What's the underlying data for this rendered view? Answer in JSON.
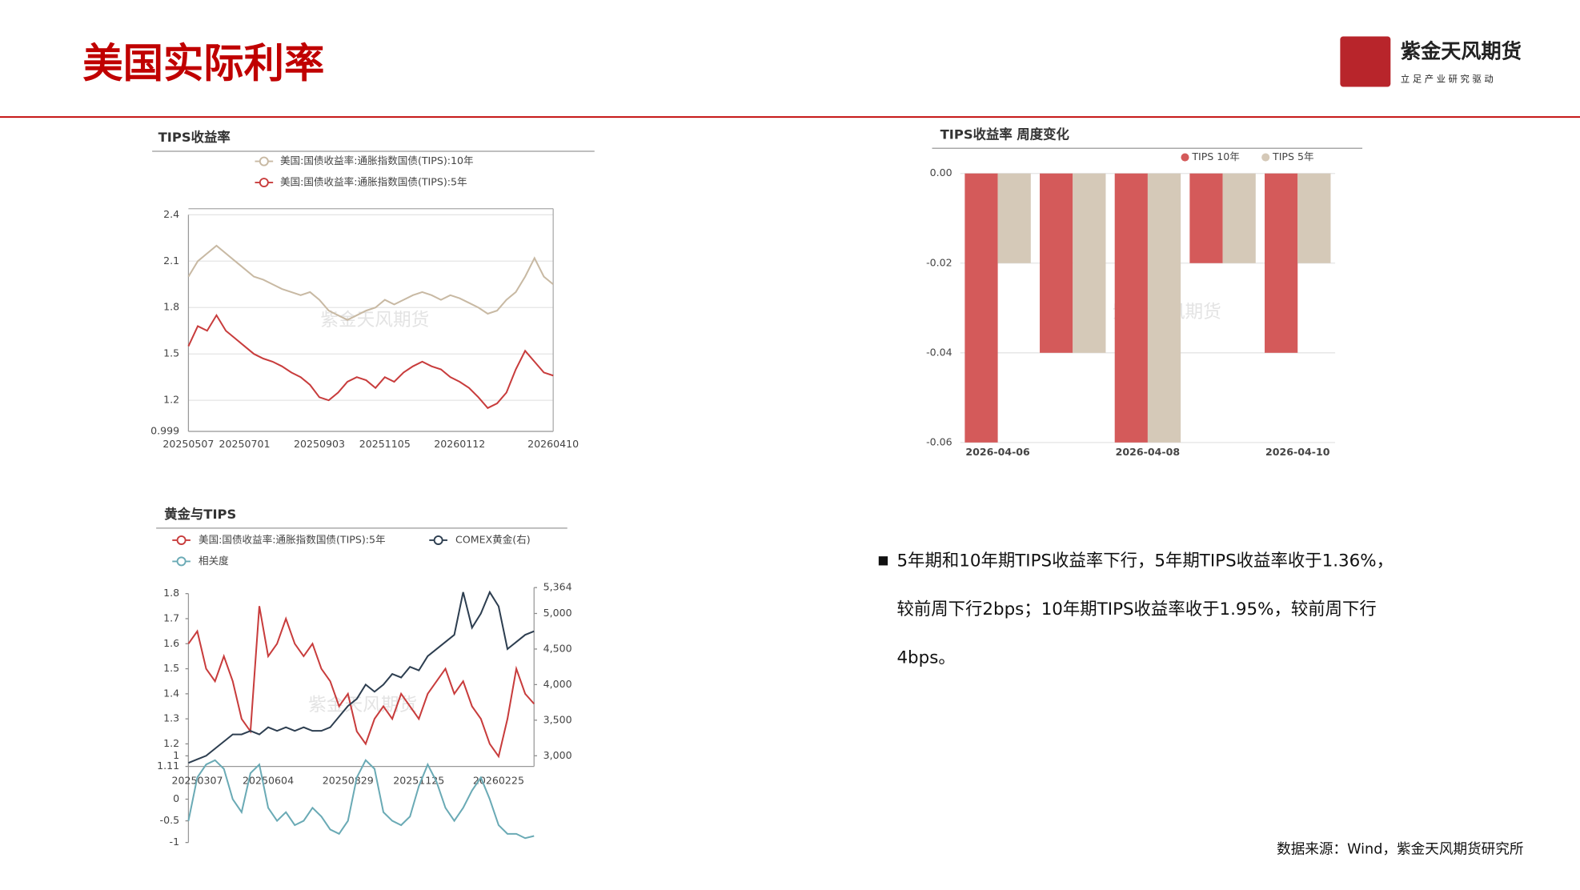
{
  "header": {
    "title": "美国实际利率",
    "logo": "紫金天风期货",
    "tagline": "立 足 产 业  研 究 驱 动",
    "watermark": "紫金天风期货"
  },
  "chart_data": [
    {
      "type": "line",
      "title": "TIPS收益率",
      "categories": [
        "20250507",
        null,
        null,
        null,
        null,
        null,
        "20250701",
        null,
        null,
        null,
        null,
        null,
        null,
        null,
        "20250903",
        null,
        null,
        null,
        null,
        null,
        null,
        "20251105",
        null,
        null,
        null,
        null,
        null,
        null,
        null,
        "20260112",
        null,
        null,
        null,
        null,
        null,
        null,
        null,
        null,
        null,
        "20260410"
      ],
      "series": [
        {
          "name": "美国:国债收益率:通胀指数国债(TIPS):10年",
          "color": "#c8b9a3",
          "values": [
            2.0,
            2.1,
            2.15,
            2.2,
            2.15,
            2.1,
            2.05,
            2.0,
            1.98,
            1.95,
            1.92,
            1.9,
            1.88,
            1.9,
            1.85,
            1.78,
            1.75,
            1.72,
            1.75,
            1.78,
            1.8,
            1.85,
            1.82,
            1.85,
            1.88,
            1.9,
            1.88,
            1.85,
            1.88,
            1.86,
            1.83,
            1.8,
            1.76,
            1.78,
            1.85,
            1.9,
            2.0,
            2.12,
            2.0,
            1.95
          ]
        },
        {
          "name": "美国:国债收益率:通胀指数国债(TIPS):5年",
          "color": "#c83c3c",
          "values": [
            1.55,
            1.68,
            1.65,
            1.75,
            1.65,
            1.6,
            1.55,
            1.5,
            1.47,
            1.45,
            1.42,
            1.38,
            1.35,
            1.3,
            1.22,
            1.2,
            1.25,
            1.32,
            1.35,
            1.33,
            1.28,
            1.35,
            1.32,
            1.38,
            1.42,
            1.45,
            1.42,
            1.4,
            1.35,
            1.32,
            1.28,
            1.22,
            1.15,
            1.18,
            1.25,
            1.4,
            1.52,
            1.45,
            1.38,
            1.36
          ]
        }
      ],
      "ylim": [
        0.999,
        2.4
      ],
      "yticks": [
        0.999,
        1.2,
        1.5,
        1.8,
        2.1,
        2.4
      ],
      "grid": true
    },
    {
      "type": "bar",
      "title": "TIPS收益率 周度变化",
      "categories": [
        "2026-04-06",
        null,
        "2026-04-08",
        null,
        "2026-04-10"
      ],
      "series": [
        {
          "name": "TIPS 10年",
          "color": "#d45a5a",
          "values": [
            -0.06,
            -0.04,
            -0.06,
            -0.02,
            -0.04
          ]
        },
        {
          "name": "TIPS 5年",
          "color": "#d5c9b8",
          "values": [
            -0.02,
            -0.04,
            -0.06,
            -0.02,
            -0.02
          ]
        }
      ],
      "ylim": [
        -0.06,
        0
      ],
      "yticks": [
        {
          "value": 0,
          "label": "0.00"
        },
        -0.02,
        -0.04,
        -0.06
      ],
      "grid": true
    },
    {
      "type": "line",
      "title": "黄金与TIPS",
      "categories": [
        null,
        "20250307",
        null,
        null,
        null,
        null,
        null,
        null,
        null,
        "20250604",
        null,
        null,
        null,
        null,
        null,
        null,
        null,
        null,
        "20250829",
        null,
        null,
        null,
        null,
        null,
        null,
        null,
        "20251125",
        null,
        null,
        null,
        null,
        null,
        null,
        null,
        null,
        "20260225",
        null,
        null,
        null,
        null
      ],
      "series": [
        {
          "name": "美国:国债收益率:通胀指数国债(TIPS):5年",
          "color": "#c83c3c",
          "values": [
            1.6,
            1.65,
            1.5,
            1.45,
            1.55,
            1.45,
            1.3,
            1.25,
            1.75,
            1.55,
            1.6,
            1.7,
            1.6,
            1.55,
            1.6,
            1.5,
            1.45,
            1.35,
            1.4,
            1.25,
            1.2,
            1.3,
            1.35,
            1.3,
            1.4,
            1.35,
            1.3,
            1.4,
            1.45,
            1.5,
            1.4,
            1.45,
            1.35,
            1.3,
            1.2,
            1.15,
            1.3,
            1.5,
            1.4,
            1.36
          ]
        },
        {
          "name": "COMEX黄金(右)",
          "color": "#2d3e50",
          "axis": "y2",
          "values": [
            2900,
            2950,
            3000,
            3100,
            3200,
            3300,
            3300,
            3350,
            3300,
            3400,
            3350,
            3400,
            3350,
            3400,
            3350,
            3350,
            3400,
            3550,
            3700,
            3800,
            4000,
            3900,
            4000,
            4150,
            4100,
            4250,
            4200,
            4400,
            4500,
            4600,
            4700,
            5300,
            4800,
            5000,
            5300,
            5100,
            4500,
            4600,
            4700,
            4750
          ]
        },
        {
          "name": "相关度",
          "color": "#6aaab5",
          "axis": "y3",
          "values": [
            -0.5,
            0.5,
            0.8,
            0.9,
            0.7,
            0,
            -0.3,
            0.6,
            0.8,
            -0.2,
            -0.5,
            -0.3,
            -0.6,
            -0.5,
            -0.2,
            -0.4,
            -0.7,
            -0.8,
            -0.5,
            0.5,
            0.9,
            0.7,
            -0.3,
            -0.5,
            -0.6,
            -0.4,
            0.3,
            0.8,
            0.4,
            -0.2,
            -0.5,
            -0.2,
            0.2,
            0.5,
            0,
            -0.6,
            -0.8,
            -0.8,
            -0.9,
            -0.85
          ]
        }
      ],
      "ylim": [
        1.11,
        1.8
      ],
      "yticks": [
        1.11,
        1.2,
        1.3,
        1.4,
        1.5,
        1.6,
        1.7,
        1.8
      ],
      "y2lim": [
        2850,
        5364
      ],
      "y2ticks": [
        {
          "value": 3000,
          "label": "3,000"
        },
        {
          "value": 3500,
          "label": "3,500"
        },
        {
          "value": 4000,
          "label": "4,000"
        },
        {
          "value": 4500,
          "label": "4,500"
        },
        {
          "value": 5000,
          "label": "5,000"
        },
        {
          "value": 5364,
          "label": "5,364"
        }
      ],
      "y3lim": [
        -1,
        1
      ],
      "y3ticks": [
        -1,
        -0.5,
        0,
        1
      ]
    }
  ],
  "bullet": [
    "5年期和10年期TIPS收益率下行，5年期TIPS收益率收于1.36%，",
    "较前周下行2bps；10年期TIPS收益率收于1.95%，较前周下行",
    "4bps。"
  ],
  "source": "数据来源：Wind，紫金天风期货研究所"
}
